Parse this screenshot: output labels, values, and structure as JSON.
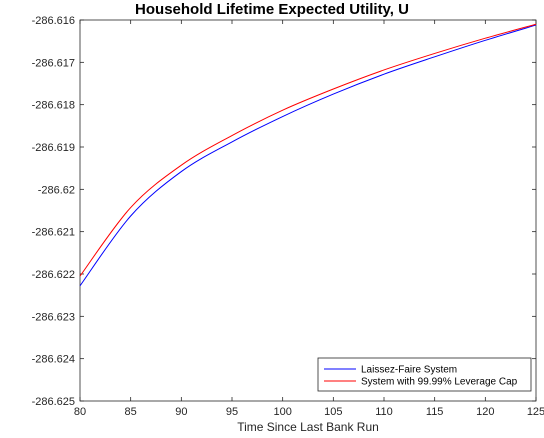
{
  "chart_data": {
    "type": "line",
    "title": "Household Lifetime Expected Utility, U",
    "xlabel": "Time Since Last Bank Run",
    "ylabel": "",
    "xlim": [
      80,
      125
    ],
    "ylim": [
      -286.625,
      -286.616
    ],
    "x_ticks": [
      "80",
      "85",
      "90",
      "95",
      "100",
      "105",
      "110",
      "115",
      "120",
      "125"
    ],
    "y_ticks": [
      "-286.616",
      "-286.617",
      "-286.618",
      "-286.619",
      "-286.62",
      "-286.621",
      "-286.622",
      "-286.623",
      "-286.624",
      "-286.625"
    ],
    "grid": false,
    "legend_position": "bottom-right",
    "series": [
      {
        "name": "Laissez-Faire System",
        "color": "#0000ff",
        "x": [
          80,
          85,
          90,
          95,
          100,
          105,
          110,
          115,
          120,
          125
        ],
        "y": [
          -286.62228,
          -286.62063,
          -286.61958,
          -286.61888,
          -286.61828,
          -286.61775,
          -286.61728,
          -286.61687,
          -286.61648,
          -286.61612
        ]
      },
      {
        "name": "System with 99.99% Leverage Cap",
        "color": "#ff0000",
        "x": [
          80,
          85,
          90,
          95,
          100,
          105,
          110,
          115,
          120,
          125
        ],
        "y": [
          -286.62205,
          -286.62043,
          -286.61943,
          -286.61873,
          -286.61813,
          -286.61763,
          -286.61718,
          -286.61679,
          -286.61643,
          -286.6161
        ]
      }
    ]
  }
}
